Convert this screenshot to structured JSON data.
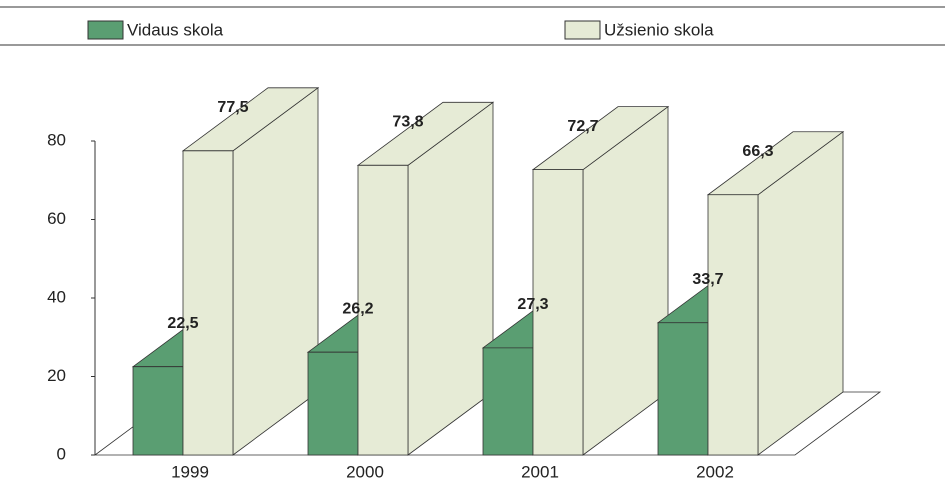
{
  "chart_data": {
    "type": "bar3d",
    "categories": [
      "1999",
      "2000",
      "2001",
      "2002"
    ],
    "series": [
      {
        "name": "Vidaus skola",
        "color": "#5a9e72",
        "values": [
          22.5,
          26.2,
          27.3,
          33.7
        ],
        "value_labels": [
          "22,5",
          "26,2",
          "27,3",
          "33,7"
        ]
      },
      {
        "name": "Užsienio skola",
        "color": "#e6ebd6",
        "values": [
          77.5,
          73.8,
          72.7,
          66.3
        ],
        "value_labels": [
          "77,5",
          "73,8",
          "72,7",
          "66,3"
        ]
      }
    ],
    "ylim": [
      0,
      80
    ],
    "yticks": [
      0,
      20,
      40,
      60,
      80
    ]
  }
}
